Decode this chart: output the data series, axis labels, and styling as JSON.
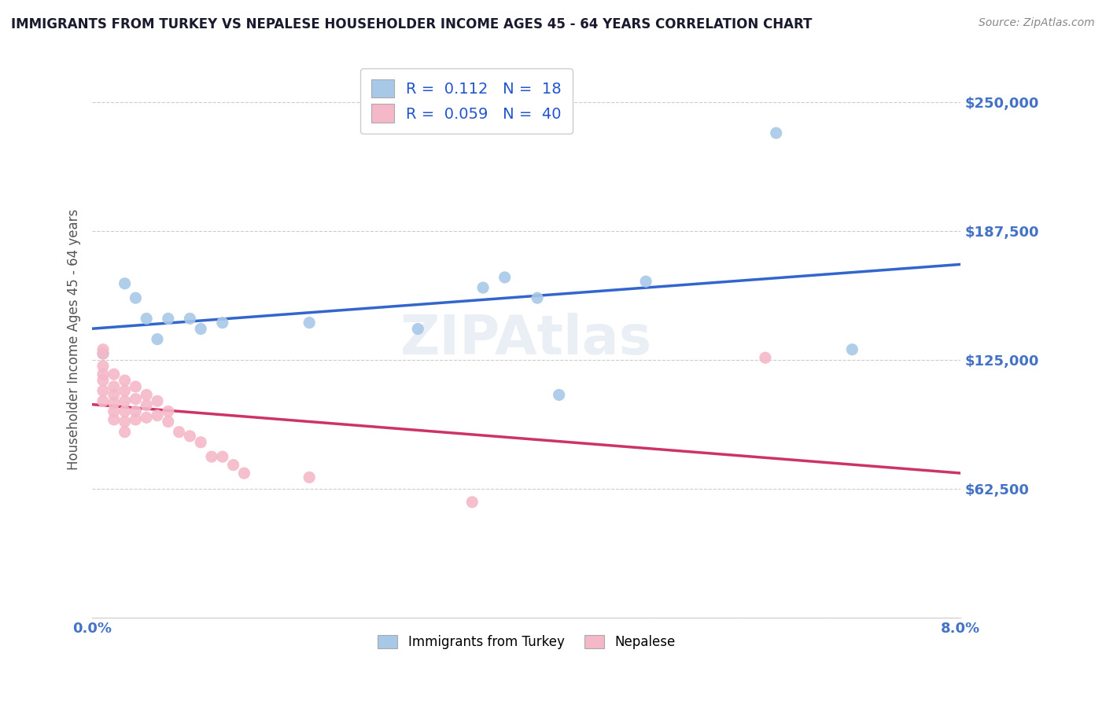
{
  "title": "IMMIGRANTS FROM TURKEY VS NEPALESE HOUSEHOLDER INCOME AGES 45 - 64 YEARS CORRELATION CHART",
  "source": "Source: ZipAtlas.com",
  "ylabel": "Householder Income Ages 45 - 64 years",
  "ytick_labels": [
    "",
    "$62,500",
    "$125,000",
    "$187,500",
    "$250,000"
  ],
  "ytick_values": [
    0,
    62500,
    125000,
    187500,
    250000
  ],
  "ylim": [
    0,
    270000
  ],
  "xlim": [
    0.0,
    0.08
  ],
  "r_turkey": 0.112,
  "n_turkey": 18,
  "r_nepalese": 0.059,
  "n_nepalese": 40,
  "legend_label_turkey": "Immigrants from Turkey",
  "legend_label_nepalese": "Nepalese",
  "color_turkey": "#a8c8e8",
  "color_nepalese": "#f4b8c8",
  "line_color_turkey": "#3366cc",
  "line_color_nepalese": "#cc3366",
  "watermark": "ZIPAtlas",
  "turkey_x": [
    0.001,
    0.003,
    0.004,
    0.005,
    0.006,
    0.007,
    0.009,
    0.01,
    0.012,
    0.02,
    0.03,
    0.036,
    0.038,
    0.041,
    0.043,
    0.051,
    0.063,
    0.07
  ],
  "turkey_y": [
    128000,
    162000,
    155000,
    145000,
    135000,
    145000,
    145000,
    140000,
    143000,
    143000,
    140000,
    160000,
    165000,
    155000,
    108000,
    163000,
    235000,
    130000
  ],
  "nepalese_x": [
    0.001,
    0.001,
    0.001,
    0.001,
    0.001,
    0.001,
    0.001,
    0.002,
    0.002,
    0.002,
    0.002,
    0.002,
    0.002,
    0.003,
    0.003,
    0.003,
    0.003,
    0.003,
    0.003,
    0.004,
    0.004,
    0.004,
    0.004,
    0.005,
    0.005,
    0.005,
    0.006,
    0.006,
    0.007,
    0.007,
    0.008,
    0.009,
    0.01,
    0.011,
    0.012,
    0.013,
    0.014,
    0.02,
    0.035,
    0.062
  ],
  "nepalese_y": [
    130000,
    128000,
    122000,
    118000,
    115000,
    110000,
    105000,
    118000,
    112000,
    108000,
    104000,
    100000,
    96000,
    115000,
    110000,
    105000,
    100000,
    95000,
    90000,
    112000,
    106000,
    100000,
    96000,
    108000,
    103000,
    97000,
    105000,
    98000,
    100000,
    95000,
    90000,
    88000,
    85000,
    78000,
    78000,
    74000,
    70000,
    68000,
    56000,
    126000
  ],
  "background_color": "#ffffff",
  "grid_color": "#cccccc",
  "title_color": "#1a1a2e",
  "axis_label_color": "#555555",
  "ytick_color": "#4472c4",
  "xtick_color": "#4472c4"
}
